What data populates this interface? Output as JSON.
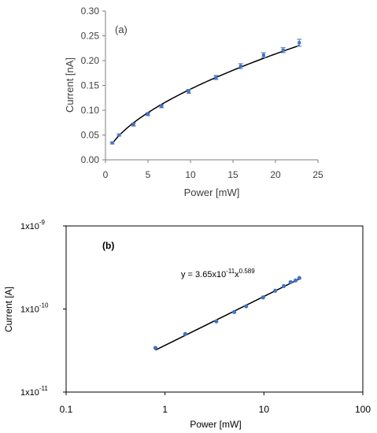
{
  "chart_data": [
    {
      "type": "scatter",
      "panel_label": "(a)",
      "xlabel": "Power [mW]",
      "ylabel": "Current [nA]",
      "xlim": [
        0,
        25
      ],
      "ylim": [
        0,
        0.3
      ],
      "x_ticks": [
        "0",
        "5",
        "10",
        "15",
        "20",
        "25"
      ],
      "y_ticks": [
        "0.00",
        "0.05",
        "0.10",
        "0.15",
        "0.20",
        "0.25",
        "0.30"
      ],
      "grid": false,
      "fit": "power-law curve",
      "series": [
        {
          "x": [
            0.8,
            1.6,
            3.3,
            5.0,
            6.6,
            9.8,
            13.0,
            15.9,
            18.6,
            20.9,
            22.8
          ],
          "y": [
            0.034,
            0.05,
            0.071,
            0.092,
            0.108,
            0.138,
            0.166,
            0.189,
            0.211,
            0.221,
            0.236
          ],
          "yerr": [
            0.002,
            0.002,
            0.003,
            0.003,
            0.003,
            0.004,
            0.004,
            0.005,
            0.005,
            0.005,
            0.007
          ]
        }
      ],
      "colors": {
        "marker": "#4472c4",
        "line": "#000000"
      }
    },
    {
      "type": "scatter",
      "panel_label": "(b)",
      "xlabel": "Power [mW]",
      "ylabel": "Current [A]",
      "x_scale": "log",
      "y_scale": "log",
      "xlim": [
        0.1,
        100
      ],
      "ylim": [
        1e-11,
        1e-09
      ],
      "x_ticks": [
        "0.1",
        "1",
        "10",
        "100"
      ],
      "y_ticks": [
        {
          "base": "1x10",
          "exp": "-11"
        },
        {
          "base": "1x10",
          "exp": "-10"
        },
        {
          "base": "1x10",
          "exp": "-9"
        }
      ],
      "grid": false,
      "annotation": {
        "prefix": "y = 3.65x10",
        "exp1": "-11",
        "mid": "x",
        "exp2": "0.589"
      },
      "fit": {
        "a": 3.65e-11,
        "b": 0.589,
        "xmin": 0.8,
        "xmax": 22.8
      },
      "series": [
        {
          "x": [
            0.8,
            1.6,
            3.3,
            5.0,
            6.6,
            9.8,
            13.0,
            15.9,
            18.6,
            20.9,
            22.8
          ],
          "y": [
            3.4e-11,
            5e-11,
            7.1e-11,
            9.2e-11,
            1.08e-10,
            1.38e-10,
            1.66e-10,
            1.89e-10,
            2.11e-10,
            2.21e-10,
            2.36e-10
          ]
        }
      ],
      "colors": {
        "marker": "#4472c4",
        "line": "#000000"
      }
    }
  ]
}
